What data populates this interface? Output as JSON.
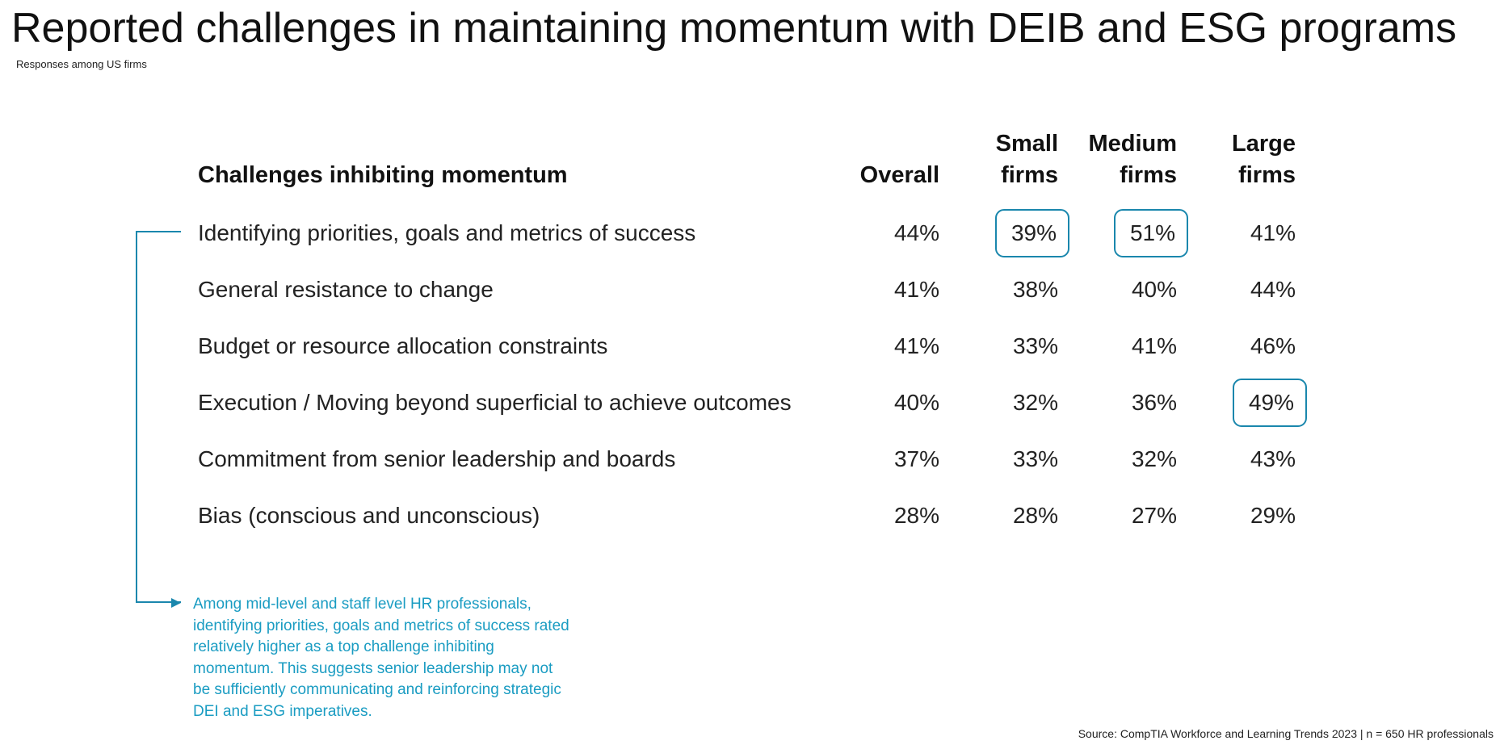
{
  "title": "Reported challenges in maintaining momentum with DEIB and ESG programs",
  "subtitle": "Responses among US firms",
  "colors": {
    "accent": "#1a87ad",
    "note_text": "#1a9cc2"
  },
  "chart_data": {
    "type": "table",
    "header": {
      "challenge": "Challenges inhibiting momentum",
      "columns": [
        {
          "line1": "",
          "line2": "Overall"
        },
        {
          "line1": "Small",
          "line2": "firms"
        },
        {
          "line1": "Medium",
          "line2": "firms"
        },
        {
          "line1": "Large",
          "line2": "firms"
        }
      ]
    },
    "rows": [
      {
        "label": "Identifying priorities, goals and metrics of success",
        "values": [
          "44%",
          "39%",
          "51%",
          "41%"
        ],
        "highlight": [
          false,
          true,
          true,
          false
        ]
      },
      {
        "label": "General resistance to change",
        "values": [
          "41%",
          "38%",
          "40%",
          "44%"
        ],
        "highlight": [
          false,
          false,
          false,
          false
        ]
      },
      {
        "label": "Budget or resource allocation constraints",
        "values": [
          "41%",
          "33%",
          "41%",
          "46%"
        ],
        "highlight": [
          false,
          false,
          false,
          false
        ]
      },
      {
        "label": "Execution / Moving beyond superficial to achieve outcomes",
        "values": [
          "40%",
          "32%",
          "36%",
          "49%"
        ],
        "highlight": [
          false,
          false,
          false,
          true
        ]
      },
      {
        "label": "Commitment from senior leadership and boards",
        "values": [
          "37%",
          "33%",
          "32%",
          "43%"
        ],
        "highlight": [
          false,
          false,
          false,
          false
        ]
      },
      {
        "label": "Bias (conscious and unconscious)",
        "values": [
          "28%",
          "28%",
          "27%",
          "29%"
        ],
        "highlight": [
          false,
          false,
          false,
          false
        ]
      }
    ]
  },
  "note": "Among mid-level and staff level HR professionals, identifying priorities, goals and metrics of success rated relatively higher as a top challenge inhibiting momentum. This suggests senior leadership may not be sufficiently communicating and reinforcing strategic DEI and ESG imperatives.",
  "source": "Source: CompTIA Workforce and Learning Trends 2023 | n = 650 HR professionals"
}
